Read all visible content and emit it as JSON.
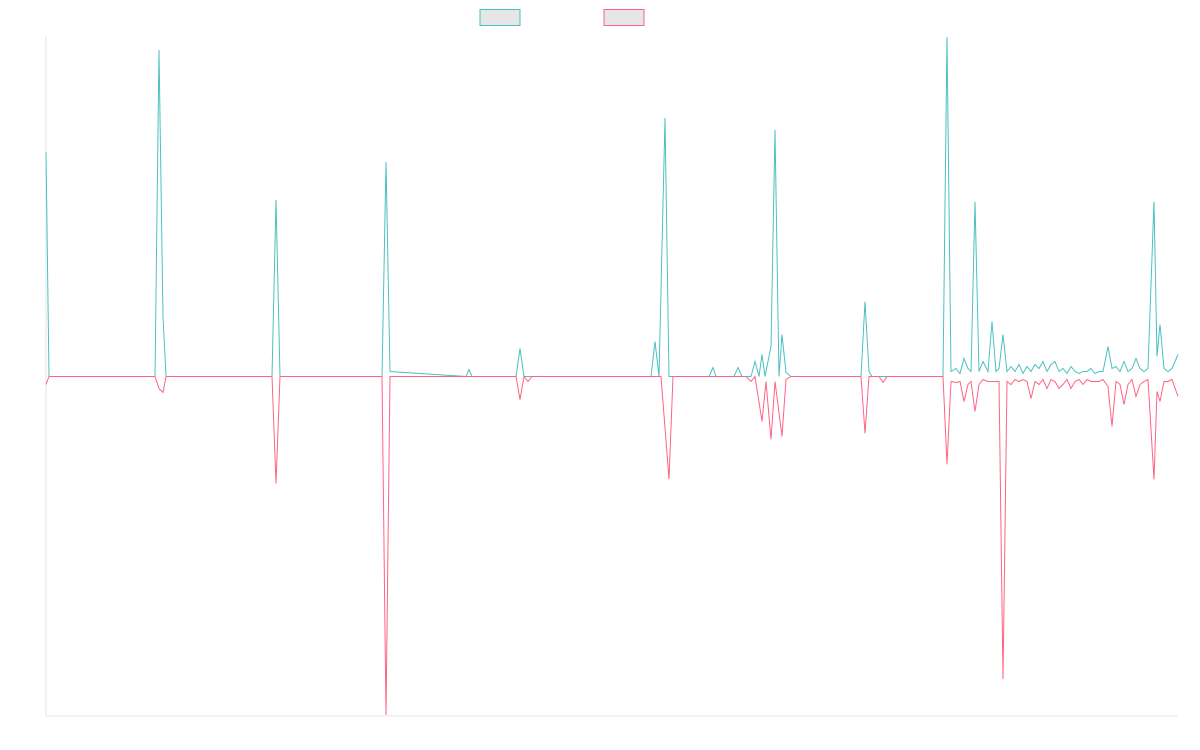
{
  "chart_data": {
    "type": "line",
    "xlim": [
      0,
      1132
    ],
    "ylim": [
      -340,
      340
    ],
    "series": [
      {
        "color": "#4bc0c0",
        "x": [
          0,
          3,
          90,
          109,
          113,
          117,
          120,
          226,
          230,
          234,
          336,
          340,
          344,
          420,
          423,
          426,
          470,
          474,
          478,
          605,
          609,
          613,
          619,
          623,
          663,
          667,
          670,
          688,
          692,
          696,
          705,
          709,
          713,
          716,
          719,
          725,
          729,
          733,
          736,
          740,
          745,
          815,
          819,
          823,
          826,
          897,
          901,
          905,
          910,
          914,
          918,
          922,
          925,
          929,
          933,
          937,
          942,
          946,
          950,
          953,
          957,
          961,
          965,
          969,
          973,
          977,
          981,
          985,
          989,
          993,
          997,
          1001,
          1005,
          1009,
          1013,
          1017,
          1021,
          1025,
          1029,
          1033,
          1037,
          1041,
          1045,
          1049,
          1053,
          1057,
          1062,
          1066,
          1070,
          1074,
          1078,
          1082,
          1086,
          1090,
          1094,
          1098,
          1102,
          1108,
          1111,
          1114,
          1118,
          1122,
          1126,
          1132
        ],
        "values": [
          225,
          0,
          0,
          0,
          327,
          60,
          0,
          0,
          177,
          0,
          0,
          215,
          5,
          0,
          7,
          0,
          0,
          28,
          0,
          0,
          35,
          0,
          259,
          0,
          0,
          9,
          0,
          0,
          9,
          0,
          0,
          15,
          0,
          22,
          0,
          30,
          247,
          0,
          42,
          4,
          0,
          0,
          75,
          5,
          0,
          0,
          340,
          5,
          8,
          3,
          18,
          8,
          5,
          175,
          5,
          15,
          5,
          55,
          5,
          8,
          42,
          5,
          10,
          5,
          12,
          3,
          10,
          5,
          12,
          8,
          15,
          5,
          12,
          15,
          5,
          8,
          3,
          10,
          5,
          3,
          5,
          5,
          8,
          3,
          5,
          5,
          30,
          8,
          10,
          5,
          15,
          5,
          8,
          18,
          8,
          5,
          8,
          175,
          20,
          52,
          8,
          5,
          8,
          22
        ]
      },
      {
        "color": "#ff6384",
        "x": [
          0,
          3,
          109,
          113,
          117,
          120,
          226,
          230,
          234,
          336,
          340,
          344,
          470,
          474,
          478,
          482,
          486,
          615,
          623,
          627,
          700,
          705,
          709,
          716,
          720,
          725,
          729,
          736,
          740,
          745,
          815,
          819,
          823,
          833,
          837,
          841,
          897,
          901,
          905,
          910,
          914,
          918,
          922,
          925,
          929,
          933,
          937,
          942,
          946,
          950,
          953,
          957,
          961,
          965,
          969,
          973,
          977,
          981,
          985,
          989,
          993,
          997,
          1001,
          1005,
          1009,
          1013,
          1017,
          1021,
          1025,
          1029,
          1033,
          1037,
          1041,
          1045,
          1049,
          1053,
          1057,
          1062,
          1066,
          1070,
          1074,
          1078,
          1082,
          1086,
          1090,
          1094,
          1098,
          1102,
          1108,
          1111,
          1114,
          1118,
          1122,
          1126,
          1132
        ],
        "values": [
          -8,
          0,
          0,
          -12,
          -16,
          0,
          0,
          -107,
          0,
          0,
          -339,
          0,
          0,
          -23,
          0,
          -5,
          0,
          0,
          -103,
          0,
          0,
          -5,
          0,
          -45,
          -5,
          -63,
          -5,
          -60,
          -3,
          0,
          0,
          -57,
          0,
          0,
          -6,
          0,
          0,
          -88,
          -5,
          -6,
          -5,
          -25,
          -8,
          -5,
          -35,
          -8,
          -3,
          -5,
          -5,
          -5,
          -5,
          -303,
          -5,
          -8,
          -3,
          -5,
          -3,
          -5,
          -22,
          -5,
          -8,
          -3,
          -12,
          -3,
          -5,
          -12,
          -8,
          -3,
          -12,
          -5,
          -3,
          -8,
          -3,
          -5,
          -5,
          -5,
          -3,
          -10,
          -50,
          -5,
          -8,
          -28,
          -8,
          -3,
          -20,
          -8,
          -5,
          -3,
          -103,
          -15,
          -25,
          -5,
          -5,
          -3,
          -20
        ]
      }
    ]
  }
}
